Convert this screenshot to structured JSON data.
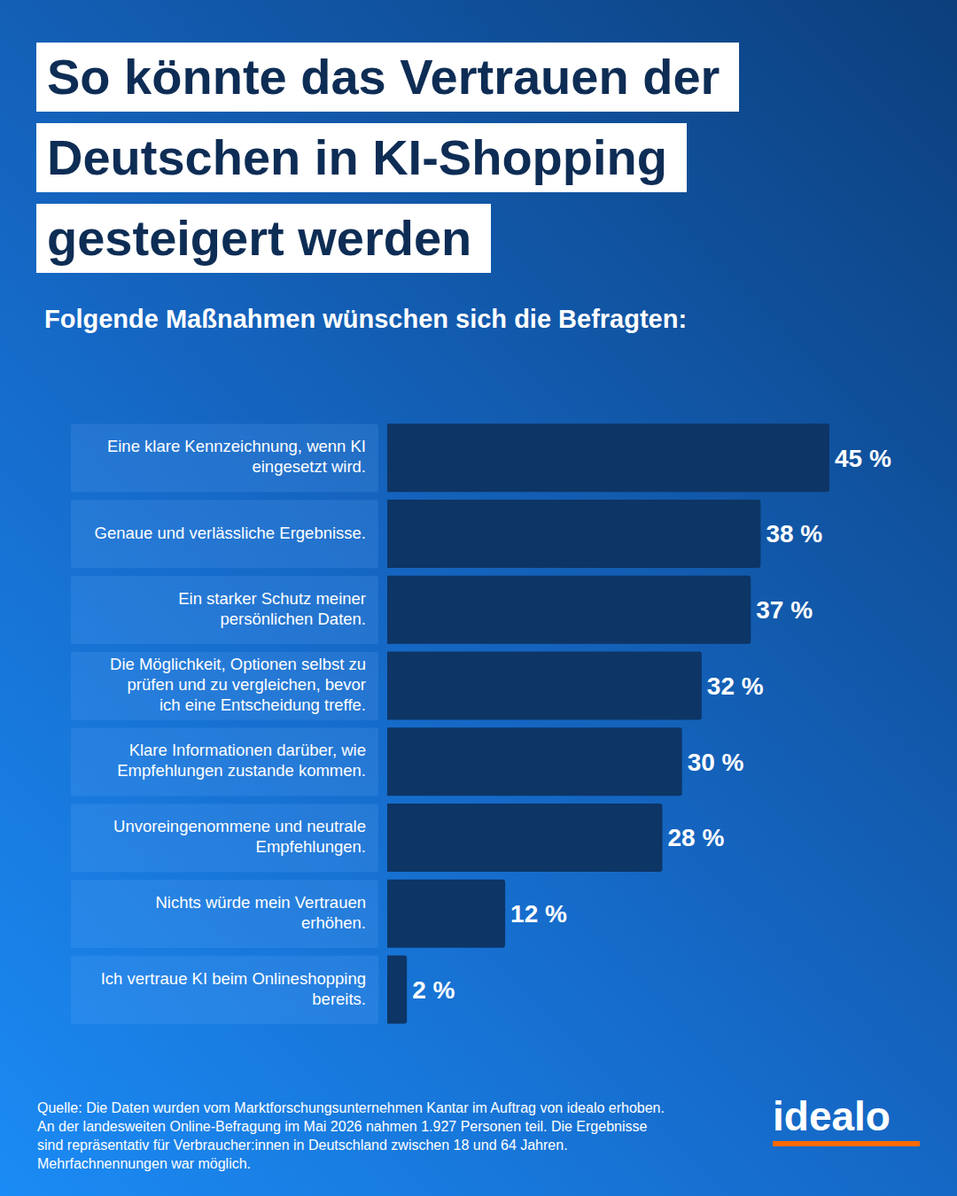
{
  "chart_data": {
    "type": "bar",
    "orientation": "horizontal",
    "title": [
      "So könnte das Vertrauen der",
      "Deutschen in KI-Shopping",
      "gesteigert werden"
    ],
    "subtitle": "Folgende Maßnahmen wünschen sich die Befragten:",
    "categories": [
      "Eine klare Kennzeichnung, wenn KI eingesetzt wird.",
      "Genaue und verlässliche Ergebnisse.",
      "Ein starker Schutz meiner persönlichen Daten.",
      "Die Möglichkeit, Optionen selbst zu prüfen und zu vergleichen, bevor ich eine Entscheidung treffe.",
      "Klare Informationen darüber, wie Empfehlungen zustande kommen.",
      "Unvoreingenommene und neutrale Empfehlungen.",
      "Nichts würde mein Vertrauen erhöhen.",
      "Ich vertraue KI beim Onlineshopping bereits."
    ],
    "values": [
      45,
      38,
      37,
      32,
      30,
      28,
      12,
      2
    ],
    "value_labels": [
      "45 %",
      "38 %",
      "37 %",
      "32 %",
      "30 %",
      "28 %",
      "12 %",
      "2 %"
    ],
    "data_labels": true,
    "color": "#0d3565",
    "xlim": [
      0,
      45
    ],
    "tick_labels": "y",
    "grid": false,
    "source": [
      "Quelle: Die Daten wurden vom Marktforschungsunternehmen Kantar im Auftrag von idealo erhoben.",
      "An der landesweiten Online-Befragung im Mai 2026 nahmen 1.927 Personen teil. Die Ergebnisse",
      "sind repräsentativ für Verbraucher:innen in Deutschland zwischen 18 und 64 Jahren.",
      "Mehrfachnennungen war möglich."
    ],
    "logo": "idealo"
  }
}
